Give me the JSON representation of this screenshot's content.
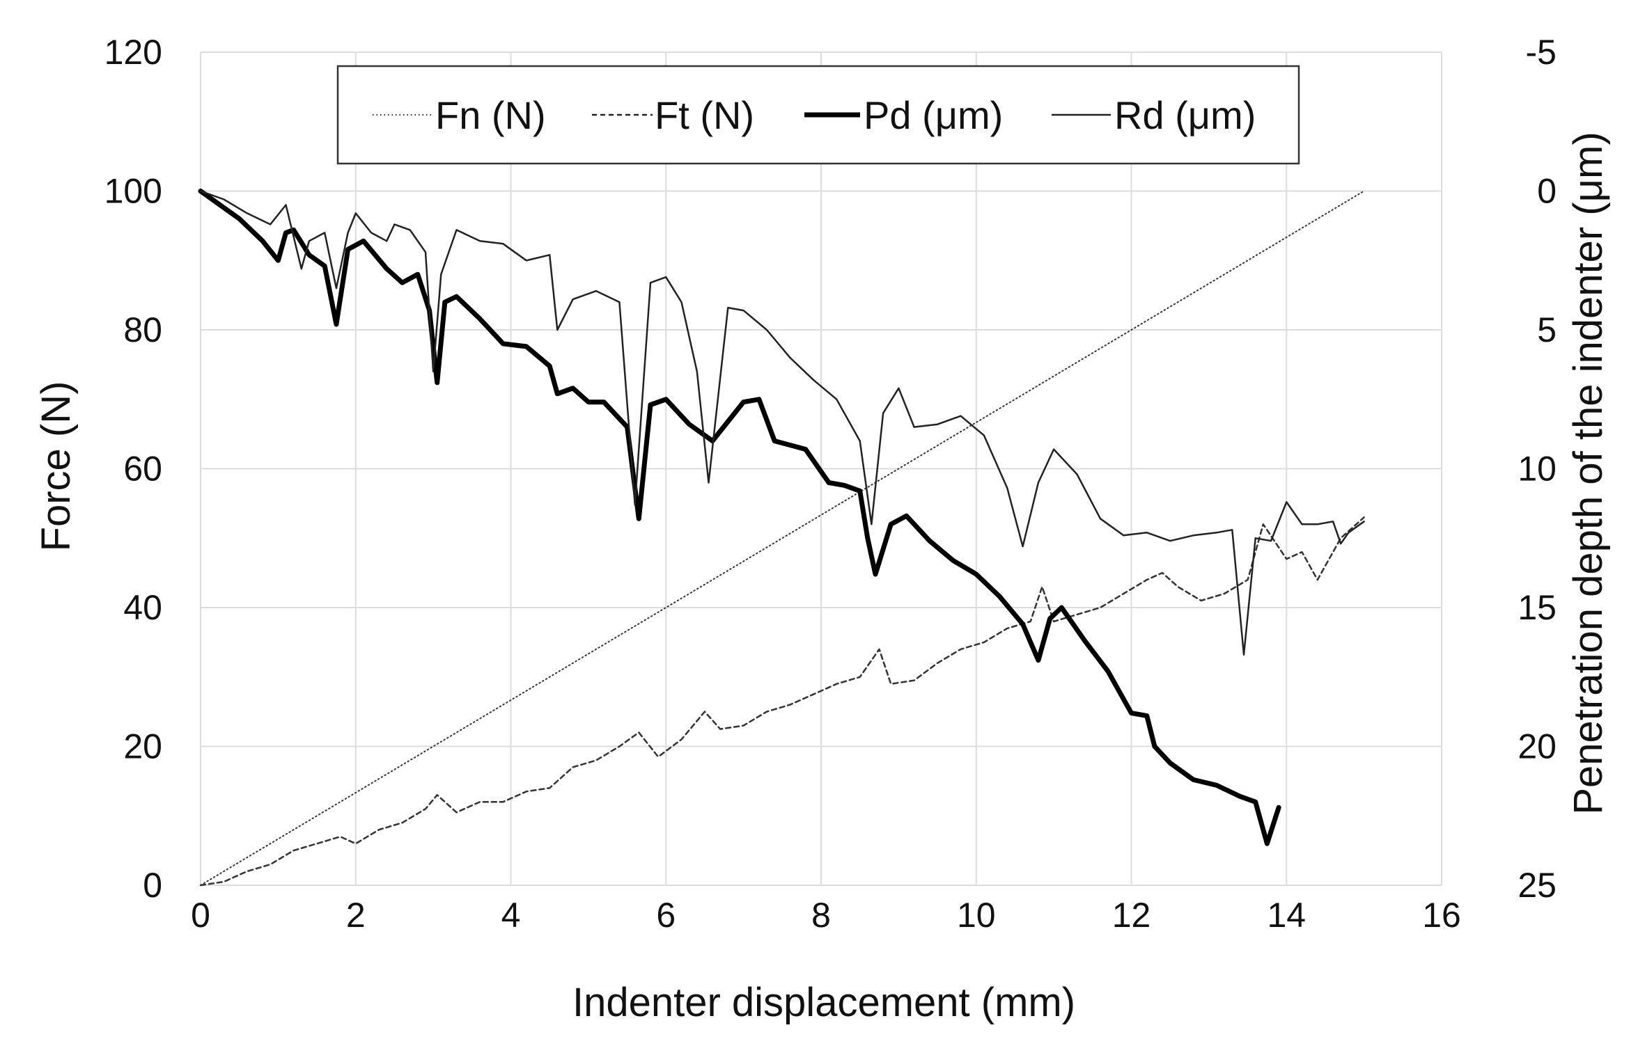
{
  "chart_data": {
    "type": "line",
    "xlabel": "Indenter displacement (mm)",
    "ylabel": "Force (N)",
    "y2label": "Penetration depth of the indenter (μm)",
    "xlim": [
      0,
      16
    ],
    "ylim": [
      0,
      120
    ],
    "y2lim": [
      25,
      -5
    ],
    "y2_reversed": true,
    "grid": true,
    "legend_position": "top-center",
    "xticks": [
      "0",
      "2",
      "4",
      "6",
      "8",
      "10",
      "12",
      "14",
      "16"
    ],
    "yticks": [
      "0",
      "20",
      "40",
      "60",
      "80",
      "100",
      "120"
    ],
    "y2ticks": [
      "25",
      "20",
      "15",
      "10",
      "5",
      "0",
      "-5"
    ],
    "series": [
      {
        "name": "Fn (N)",
        "axis": "left",
        "style": "dotted",
        "x": [
          0,
          15
        ],
        "y": [
          0,
          100
        ]
      },
      {
        "name": "Ft (N)",
        "axis": "left",
        "style": "dashed",
        "x": [
          0,
          0.3,
          0.6,
          0.9,
          1.2,
          1.5,
          1.8,
          2.0,
          2.3,
          2.6,
          2.9,
          3.05,
          3.3,
          3.6,
          3.9,
          4.2,
          4.5,
          4.8,
          5.1,
          5.4,
          5.65,
          5.9,
          6.2,
          6.5,
          6.7,
          7.0,
          7.3,
          7.6,
          7.9,
          8.2,
          8.5,
          8.75,
          8.9,
          9.2,
          9.5,
          9.8,
          10.1,
          10.4,
          10.7,
          10.85,
          11.0,
          11.3,
          11.6,
          11.9,
          12.2,
          12.4,
          12.6,
          12.9,
          13.2,
          13.5,
          13.7,
          14.0,
          14.2,
          14.4,
          14.7,
          15.0
        ],
        "y": [
          0,
          0.5,
          2,
          3,
          5,
          6,
          7,
          6,
          8,
          9,
          11,
          13,
          10.5,
          12,
          12,
          13.5,
          14,
          17,
          18,
          20,
          22,
          18.5,
          21,
          25,
          22.5,
          23,
          25,
          26,
          27.5,
          29,
          30,
          34,
          29,
          29.5,
          32,
          34,
          35,
          37,
          38,
          43,
          38,
          39,
          40,
          42,
          44,
          45,
          43,
          41,
          42,
          44,
          52,
          47,
          48,
          44,
          50,
          53
        ]
      },
      {
        "name": "Pd (μm)",
        "axis": "right",
        "style": "thick",
        "x": [
          0,
          0.2,
          0.5,
          0.8,
          1.0,
          1.1,
          1.2,
          1.4,
          1.6,
          1.75,
          1.9,
          2.1,
          2.4,
          2.6,
          2.8,
          2.95,
          3.05,
          3.15,
          3.3,
          3.6,
          3.9,
          4.2,
          4.5,
          4.6,
          4.8,
          5.0,
          5.2,
          5.5,
          5.65,
          5.8,
          6.0,
          6.3,
          6.6,
          6.8,
          7.0,
          7.2,
          7.4,
          7.8,
          8.1,
          8.3,
          8.5,
          8.6,
          8.7,
          8.9,
          9.1,
          9.4,
          9.7,
          10.0,
          10.3,
          10.6,
          10.8,
          10.95,
          11.1,
          11.4,
          11.7,
          12.0,
          12.2,
          12.3,
          12.5,
          12.8,
          13.1,
          13.4,
          13.6,
          13.75,
          13.9
        ],
        "y": [
          0,
          0.4,
          1.0,
          1.8,
          2.5,
          1.5,
          1.4,
          2.3,
          2.7,
          4.8,
          2.1,
          1.8,
          2.8,
          3.3,
          3.0,
          4.3,
          6.9,
          4.0,
          3.8,
          4.6,
          5.5,
          5.6,
          6.3,
          7.3,
          7.1,
          7.6,
          7.6,
          8.5,
          11.8,
          7.7,
          7.5,
          8.4,
          9.0,
          8.3,
          7.6,
          7.5,
          9.0,
          9.3,
          10.5,
          10.6,
          10.8,
          12.5,
          13.8,
          12.0,
          11.7,
          12.6,
          13.3,
          13.8,
          14.6,
          15.6,
          16.9,
          15.4,
          15.0,
          16.2,
          17.3,
          18.8,
          18.9,
          20.0,
          20.6,
          21.2,
          21.4,
          21.8,
          22.0,
          23.5,
          22.2
        ]
      },
      {
        "name": "Rd (μm)",
        "axis": "right",
        "style": "thin",
        "x": [
          0,
          0.3,
          0.6,
          0.9,
          1.1,
          1.3,
          1.4,
          1.6,
          1.75,
          1.9,
          2.0,
          2.2,
          2.4,
          2.5,
          2.7,
          2.9,
          3.0,
          3.1,
          3.3,
          3.6,
          3.9,
          4.2,
          4.5,
          4.6,
          4.8,
          5.1,
          5.4,
          5.6,
          5.8,
          6.0,
          6.2,
          6.4,
          6.55,
          6.8,
          7.0,
          7.3,
          7.6,
          7.9,
          8.2,
          8.5,
          8.65,
          8.8,
          9.0,
          9.2,
          9.5,
          9.8,
          10.1,
          10.4,
          10.6,
          10.8,
          11.0,
          11.3,
          11.6,
          11.9,
          12.2,
          12.5,
          12.8,
          13.1,
          13.3,
          13.45,
          13.6,
          13.8,
          14.0,
          14.2,
          14.4,
          14.6,
          14.7,
          14.8,
          15.0
        ],
        "y": [
          0,
          0.3,
          0.8,
          1.2,
          0.5,
          2.8,
          1.8,
          1.5,
          3.5,
          1.5,
          0.8,
          1.5,
          1.8,
          1.2,
          1.4,
          2.2,
          6.5,
          3.0,
          1.4,
          1.8,
          1.9,
          2.5,
          2.3,
          5.0,
          3.9,
          3.6,
          4.0,
          11.3,
          3.3,
          3.1,
          4.0,
          6.5,
          10.5,
          4.2,
          4.3,
          5.0,
          6.0,
          6.8,
          7.5,
          9.0,
          12.0,
          8.0,
          7.1,
          8.5,
          8.4,
          8.1,
          8.8,
          10.7,
          12.8,
          10.5,
          9.3,
          10.2,
          11.8,
          12.4,
          12.3,
          12.6,
          12.4,
          12.3,
          12.2,
          16.7,
          12.5,
          12.6,
          11.2,
          12.0,
          12.0,
          11.9,
          12.7,
          12.3,
          11.9
        ]
      }
    ]
  }
}
